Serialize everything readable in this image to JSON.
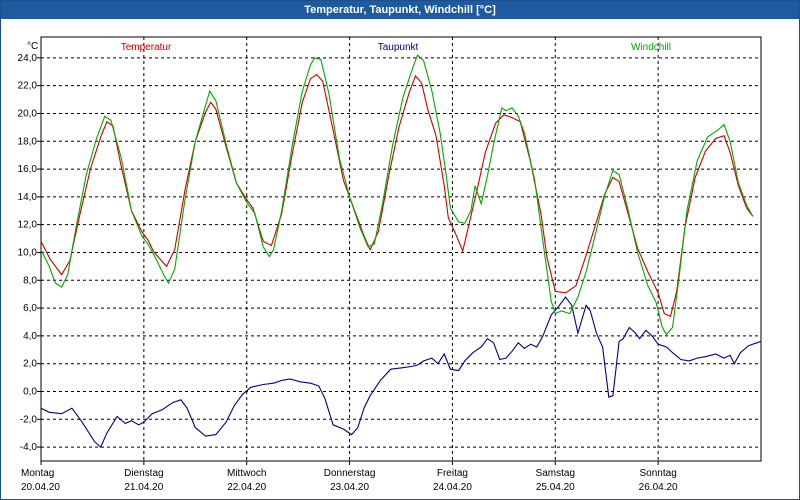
{
  "window": {
    "title": "Temperatur, Taupunkt, Windchill [°C]"
  },
  "chart_data": {
    "type": "line",
    "title": "Temperatur, Taupunkt, Windchill [°C]",
    "ylabel": "°C",
    "ylim": [
      -5,
      25.5
    ],
    "yticks": [
      -4,
      -2,
      0,
      2,
      4,
      6,
      8,
      10,
      12,
      14,
      16,
      18,
      20,
      22,
      24
    ],
    "ytick_labels": [
      "-4,0",
      "-2,0",
      "0,0",
      "2,0",
      "4,0",
      "6,0",
      "8,0",
      "10,0",
      "12,0",
      "14,0",
      "16,0",
      "18,0",
      "20,0",
      "22,0",
      "24,0"
    ],
    "xlim": [
      0,
      7.0
    ],
    "days": [
      {
        "day": "Montag",
        "date": "20.04.20"
      },
      {
        "day": "Dienstag",
        "date": "21.04.20"
      },
      {
        "day": "Mittwoch",
        "date": "22.04.20"
      },
      {
        "day": "Donnerstag",
        "date": "23.04.20"
      },
      {
        "day": "Freitag",
        "date": "24.04.20"
      },
      {
        "day": "Samstag",
        "date": "25.04.20"
      },
      {
        "day": "Sonntag",
        "date": "26.04.20"
      }
    ],
    "grid": true,
    "series": [
      {
        "name": "Temperatur",
        "color": "#cc0000",
        "points": [
          [
            0.0,
            10.8
          ],
          [
            0.09,
            9.5
          ],
          [
            0.2,
            8.4
          ],
          [
            0.28,
            9.4
          ],
          [
            0.38,
            12.8
          ],
          [
            0.48,
            16.0
          ],
          [
            0.58,
            18.3
          ],
          [
            0.64,
            19.4
          ],
          [
            0.7,
            19.1
          ],
          [
            0.78,
            16.2
          ],
          [
            0.88,
            13.0
          ],
          [
            0.98,
            11.5
          ],
          [
            1.04,
            10.9
          ],
          [
            1.1,
            10.0
          ],
          [
            1.22,
            9.0
          ],
          [
            1.3,
            10.2
          ],
          [
            1.4,
            14.5
          ],
          [
            1.5,
            18.0
          ],
          [
            1.6,
            20.1
          ],
          [
            1.65,
            20.8
          ],
          [
            1.7,
            20.3
          ],
          [
            1.8,
            17.6
          ],
          [
            1.9,
            15.0
          ],
          [
            2.0,
            13.8
          ],
          [
            2.06,
            13.2
          ],
          [
            2.16,
            10.8
          ],
          [
            2.24,
            10.5
          ],
          [
            2.34,
            12.8
          ],
          [
            2.44,
            17.0
          ],
          [
            2.54,
            20.8
          ],
          [
            2.62,
            22.5
          ],
          [
            2.68,
            22.8
          ],
          [
            2.74,
            22.3
          ],
          [
            2.84,
            18.8
          ],
          [
            2.94,
            15.2
          ],
          [
            3.06,
            12.8
          ],
          [
            3.14,
            11.2
          ],
          [
            3.2,
            10.2
          ],
          [
            3.28,
            11.5
          ],
          [
            3.38,
            15.5
          ],
          [
            3.48,
            19.0
          ],
          [
            3.58,
            21.5
          ],
          [
            3.64,
            22.7
          ],
          [
            3.7,
            22.2
          ],
          [
            3.76,
            20.3
          ],
          [
            3.84,
            18.4
          ],
          [
            3.92,
            14.8
          ],
          [
            3.96,
            12.5
          ],
          [
            4.04,
            11.2
          ],
          [
            4.1,
            10.1
          ],
          [
            4.16,
            12.0
          ],
          [
            4.24,
            14.5
          ],
          [
            4.32,
            17.2
          ],
          [
            4.42,
            19.3
          ],
          [
            4.5,
            19.9
          ],
          [
            4.58,
            19.7
          ],
          [
            4.66,
            19.4
          ],
          [
            4.76,
            16.5
          ],
          [
            4.86,
            12.8
          ],
          [
            4.92,
            9.6
          ],
          [
            5.0,
            7.2
          ],
          [
            5.1,
            7.1
          ],
          [
            5.2,
            7.6
          ],
          [
            5.3,
            9.8
          ],
          [
            5.4,
            12.2
          ],
          [
            5.48,
            14.2
          ],
          [
            5.56,
            15.4
          ],
          [
            5.62,
            15.1
          ],
          [
            5.7,
            13.0
          ],
          [
            5.8,
            10.3
          ],
          [
            5.9,
            8.6
          ],
          [
            6.0,
            7.1
          ],
          [
            6.06,
            5.6
          ],
          [
            6.12,
            5.4
          ],
          [
            6.18,
            7.2
          ],
          [
            6.26,
            11.8
          ],
          [
            6.36,
            15.4
          ],
          [
            6.46,
            17.3
          ],
          [
            6.56,
            18.2
          ],
          [
            6.64,
            18.4
          ],
          [
            6.7,
            17.2
          ],
          [
            6.78,
            14.8
          ],
          [
            6.86,
            13.2
          ],
          [
            6.92,
            12.6
          ]
        ]
      },
      {
        "name": "Taupunkt",
        "color": "#00008b",
        "points": [
          [
            0.0,
            -1.2
          ],
          [
            0.08,
            -1.5
          ],
          [
            0.2,
            -1.6
          ],
          [
            0.3,
            -1.2
          ],
          [
            0.4,
            -2.2
          ],
          [
            0.52,
            -3.6
          ],
          [
            0.58,
            -4.0
          ],
          [
            0.64,
            -3.0
          ],
          [
            0.74,
            -1.8
          ],
          [
            0.82,
            -2.3
          ],
          [
            0.88,
            -2.1
          ],
          [
            0.95,
            -2.4
          ],
          [
            1.0,
            -2.2
          ],
          [
            1.08,
            -1.6
          ],
          [
            1.18,
            -1.3
          ],
          [
            1.28,
            -0.8
          ],
          [
            1.36,
            -0.6
          ],
          [
            1.42,
            -1.2
          ],
          [
            1.5,
            -2.6
          ],
          [
            1.6,
            -3.2
          ],
          [
            1.7,
            -3.1
          ],
          [
            1.8,
            -2.2
          ],
          [
            1.88,
            -1.0
          ],
          [
            1.96,
            -0.2
          ],
          [
            2.04,
            0.3
          ],
          [
            2.16,
            0.5
          ],
          [
            2.26,
            0.6
          ],
          [
            2.34,
            0.8
          ],
          [
            2.42,
            0.9
          ],
          [
            2.52,
            0.7
          ],
          [
            2.62,
            0.6
          ],
          [
            2.7,
            0.4
          ],
          [
            2.76,
            -0.5
          ],
          [
            2.84,
            -2.4
          ],
          [
            2.94,
            -2.7
          ],
          [
            3.02,
            -3.1
          ],
          [
            3.08,
            -2.6
          ],
          [
            3.14,
            -1.2
          ],
          [
            3.2,
            -0.3
          ],
          [
            3.3,
            0.8
          ],
          [
            3.4,
            1.6
          ],
          [
            3.5,
            1.7
          ],
          [
            3.6,
            1.8
          ],
          [
            3.66,
            1.9
          ],
          [
            3.72,
            2.2
          ],
          [
            3.8,
            2.4
          ],
          [
            3.86,
            2.0
          ],
          [
            3.92,
            2.7
          ],
          [
            3.98,
            1.6
          ],
          [
            4.06,
            1.5
          ],
          [
            4.12,
            2.2
          ],
          [
            4.2,
            2.8
          ],
          [
            4.28,
            3.2
          ],
          [
            4.34,
            3.8
          ],
          [
            4.4,
            3.5
          ],
          [
            4.46,
            2.3
          ],
          [
            4.52,
            2.4
          ],
          [
            4.58,
            2.9
          ],
          [
            4.64,
            3.5
          ],
          [
            4.7,
            3.1
          ],
          [
            4.76,
            3.4
          ],
          [
            4.82,
            3.2
          ],
          [
            4.88,
            4.0
          ],
          [
            4.96,
            5.5
          ],
          [
            5.04,
            6.2
          ],
          [
            5.1,
            6.8
          ],
          [
            5.16,
            6.2
          ],
          [
            5.22,
            4.2
          ],
          [
            5.3,
            6.2
          ],
          [
            5.34,
            5.8
          ],
          [
            5.4,
            4.2
          ],
          [
            5.46,
            3.2
          ],
          [
            5.52,
            -0.4
          ],
          [
            5.56,
            -0.3
          ],
          [
            5.62,
            3.6
          ],
          [
            5.66,
            3.8
          ],
          [
            5.72,
            4.6
          ],
          [
            5.78,
            4.2
          ],
          [
            5.82,
            3.8
          ],
          [
            5.88,
            4.4
          ],
          [
            5.94,
            4.0
          ],
          [
            6.0,
            3.4
          ],
          [
            6.08,
            3.2
          ],
          [
            6.14,
            2.8
          ],
          [
            6.22,
            2.3
          ],
          [
            6.3,
            2.2
          ],
          [
            6.38,
            2.4
          ],
          [
            6.46,
            2.5
          ],
          [
            6.56,
            2.7
          ],
          [
            6.64,
            2.4
          ],
          [
            6.7,
            2.6
          ],
          [
            6.74,
            2.0
          ],
          [
            6.8,
            2.8
          ],
          [
            6.88,
            3.3
          ],
          [
            6.96,
            3.5
          ],
          [
            7.0,
            3.6
          ]
        ]
      },
      {
        "name": "Windchill",
        "color": "#00aa00",
        "points": [
          [
            0.0,
            10.2
          ],
          [
            0.08,
            9.0
          ],
          [
            0.14,
            7.8
          ],
          [
            0.2,
            7.5
          ],
          [
            0.26,
            8.4
          ],
          [
            0.34,
            11.8
          ],
          [
            0.44,
            15.6
          ],
          [
            0.54,
            18.2
          ],
          [
            0.62,
            19.8
          ],
          [
            0.68,
            19.5
          ],
          [
            0.78,
            16.8
          ],
          [
            0.88,
            13.0
          ],
          [
            0.98,
            11.2
          ],
          [
            1.04,
            10.6
          ],
          [
            1.12,
            9.5
          ],
          [
            1.2,
            8.3
          ],
          [
            1.24,
            7.8
          ],
          [
            1.3,
            8.8
          ],
          [
            1.4,
            13.8
          ],
          [
            1.5,
            18.0
          ],
          [
            1.6,
            20.6
          ],
          [
            1.64,
            21.6
          ],
          [
            1.7,
            20.9
          ],
          [
            1.8,
            17.8
          ],
          [
            1.9,
            15.0
          ],
          [
            2.0,
            13.6
          ],
          [
            2.08,
            12.8
          ],
          [
            2.16,
            10.4
          ],
          [
            2.22,
            9.7
          ],
          [
            2.26,
            10.2
          ],
          [
            2.34,
            13.0
          ],
          [
            2.44,
            17.6
          ],
          [
            2.54,
            21.6
          ],
          [
            2.62,
            23.5
          ],
          [
            2.66,
            24.0
          ],
          [
            2.72,
            23.9
          ],
          [
            2.8,
            21.4
          ],
          [
            2.9,
            16.8
          ],
          [
            3.0,
            14.0
          ],
          [
            3.1,
            11.8
          ],
          [
            3.18,
            10.4
          ],
          [
            3.24,
            10.6
          ],
          [
            3.32,
            13.5
          ],
          [
            3.42,
            17.8
          ],
          [
            3.52,
            21.2
          ],
          [
            3.62,
            23.4
          ],
          [
            3.66,
            24.2
          ],
          [
            3.72,
            23.8
          ],
          [
            3.8,
            21.6
          ],
          [
            3.88,
            18.6
          ],
          [
            3.94,
            15.5
          ],
          [
            3.98,
            13.2
          ],
          [
            4.06,
            12.2
          ],
          [
            4.12,
            12.1
          ],
          [
            4.18,
            13.0
          ],
          [
            4.22,
            14.8
          ],
          [
            4.28,
            13.5
          ],
          [
            4.34,
            15.5
          ],
          [
            4.4,
            17.8
          ],
          [
            4.48,
            20.4
          ],
          [
            4.52,
            20.2
          ],
          [
            4.58,
            20.4
          ],
          [
            4.64,
            19.8
          ],
          [
            4.7,
            18.6
          ],
          [
            4.8,
            15.2
          ],
          [
            4.88,
            10.8
          ],
          [
            4.96,
            6.5
          ],
          [
            5.0,
            5.6
          ],
          [
            5.06,
            5.8
          ],
          [
            5.14,
            5.6
          ],
          [
            5.22,
            6.8
          ],
          [
            5.3,
            8.6
          ],
          [
            5.4,
            11.6
          ],
          [
            5.48,
            14.1
          ],
          [
            5.56,
            15.9
          ],
          [
            5.62,
            15.6
          ],
          [
            5.7,
            13.3
          ],
          [
            5.8,
            10.0
          ],
          [
            5.9,
            7.6
          ],
          [
            5.98,
            6.4
          ],
          [
            6.04,
            4.6
          ],
          [
            6.08,
            4.1
          ],
          [
            6.14,
            4.6
          ],
          [
            6.2,
            8.0
          ],
          [
            6.28,
            13.0
          ],
          [
            6.38,
            16.6
          ],
          [
            6.48,
            18.3
          ],
          [
            6.58,
            18.8
          ],
          [
            6.64,
            19.2
          ],
          [
            6.7,
            18.0
          ],
          [
            6.78,
            15.0
          ],
          [
            6.86,
            13.4
          ],
          [
            6.92,
            12.6
          ]
        ]
      }
    ]
  }
}
